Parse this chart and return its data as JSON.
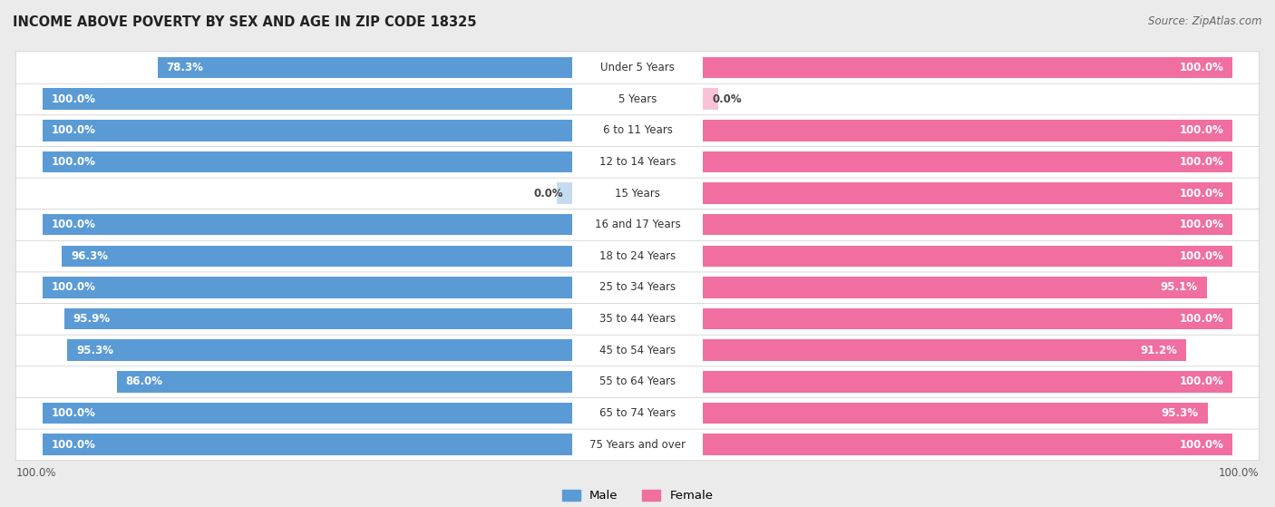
{
  "title": "INCOME ABOVE POVERTY BY SEX AND AGE IN ZIP CODE 18325",
  "source": "Source: ZipAtlas.com",
  "categories": [
    "Under 5 Years",
    "5 Years",
    "6 to 11 Years",
    "12 to 14 Years",
    "15 Years",
    "16 and 17 Years",
    "18 to 24 Years",
    "25 to 34 Years",
    "35 to 44 Years",
    "45 to 54 Years",
    "55 to 64 Years",
    "65 to 74 Years",
    "75 Years and over"
  ],
  "male_values": [
    78.3,
    100.0,
    100.0,
    100.0,
    0.0,
    100.0,
    96.3,
    100.0,
    95.9,
    95.3,
    86.0,
    100.0,
    100.0
  ],
  "female_values": [
    100.0,
    0.0,
    100.0,
    100.0,
    100.0,
    100.0,
    100.0,
    95.1,
    100.0,
    91.2,
    100.0,
    95.3,
    100.0
  ],
  "male_color": "#5b9bd5",
  "male_color_light": "#c5dbf0",
  "female_color": "#f06ea0",
  "female_color_light": "#f9c2d8",
  "row_bg_color": "#ebebeb",
  "bar_bg_color": "#ffffff",
  "title_fontsize": 10.5,
  "source_fontsize": 8.5,
  "label_fontsize": 8.5,
  "bar_height": 0.68,
  "max_val": 100.0,
  "legend_male": "Male",
  "legend_female": "Female"
}
